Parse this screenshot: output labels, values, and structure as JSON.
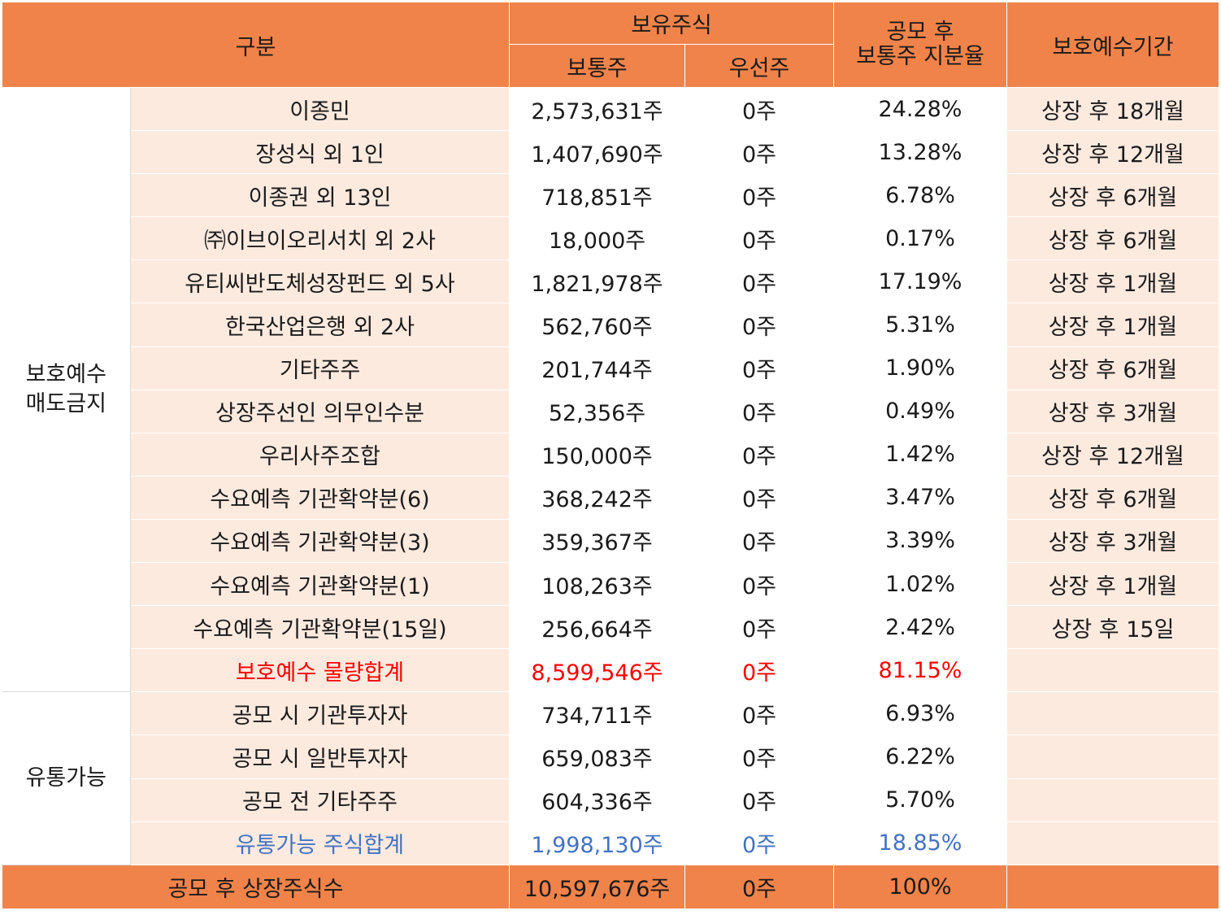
{
  "header": {
    "category": "구분",
    "holdings": "보유주식",
    "common": "보통주",
    "preferred": "우선주",
    "ratio": "공모 후\n보통주 지분율",
    "lockup_period": "보호예수기간"
  },
  "groups": {
    "locked": "보호예수\n매도금지",
    "tradable": "유통가능"
  },
  "locked_rows": [
    {
      "name": "이종민",
      "common": "2,573,631주",
      "preferred": "0주",
      "ratio": "24.28%",
      "period": "상장 후 18개월"
    },
    {
      "name": "장성식 외 1인",
      "common": "1,407,690주",
      "preferred": "0주",
      "ratio": "13.28%",
      "period": "상장 후 12개월"
    },
    {
      "name": "이종권 외 13인",
      "common": "718,851주",
      "preferred": "0주",
      "ratio": "6.78%",
      "period": "상장 후 6개월"
    },
    {
      "name": "㈜이브이오리서치 외 2사",
      "common": "18,000주",
      "preferred": "0주",
      "ratio": "0.17%",
      "period": "상장 후 6개월"
    },
    {
      "name": "유티씨반도체성장펀드 외 5사",
      "common": "1,821,978주",
      "preferred": "0주",
      "ratio": "17.19%",
      "period": "상장 후 1개월"
    },
    {
      "name": "한국산업은행 외 2사",
      "common": "562,760주",
      "preferred": "0주",
      "ratio": "5.31%",
      "period": "상장 후 1개월"
    },
    {
      "name": "기타주주",
      "common": "201,744주",
      "preferred": "0주",
      "ratio": "1.90%",
      "period": "상장 후 6개월"
    },
    {
      "name": "상장주선인 의무인수분",
      "common": "52,356주",
      "preferred": "0주",
      "ratio": "0.49%",
      "period": "상장 후 3개월"
    },
    {
      "name": "우리사주조합",
      "common": "150,000주",
      "preferred": "0주",
      "ratio": "1.42%",
      "period": "상장 후 12개월"
    },
    {
      "name": "수요예측 기관확약분(6)",
      "common": "368,242주",
      "preferred": "0주",
      "ratio": "3.47%",
      "period": "상장 후 6개월"
    },
    {
      "name": "수요예측 기관확약분(3)",
      "common": "359,367주",
      "preferred": "0주",
      "ratio": "3.39%",
      "period": "상장 후 3개월"
    },
    {
      "name": "수요예측 기관확약분(1)",
      "common": "108,263주",
      "preferred": "0주",
      "ratio": "1.02%",
      "period": "상장 후 1개월"
    },
    {
      "name": "수요예측 기관확약분(15일)",
      "common": "256,664주",
      "preferred": "0주",
      "ratio": "2.42%",
      "period": "상장 후 15일"
    }
  ],
  "locked_sum": {
    "name": "보호예수 물량합계",
    "common": "8,599,546주",
    "preferred": "0주",
    "ratio": "81.15%"
  },
  "tradable_rows": [
    {
      "name": "공모 시 기관투자자",
      "common": "734,711주",
      "preferred": "0주",
      "ratio": "6.93%"
    },
    {
      "name": "공모 시 일반투자자",
      "common": "659,083주",
      "preferred": "0주",
      "ratio": "6.22%"
    },
    {
      "name": "공모 전 기타주주",
      "common": "604,336주",
      "preferred": "0주",
      "ratio": "5.70%"
    }
  ],
  "tradable_sum": {
    "name": "유통가능 주식합계",
    "common": "1,998,130주",
    "preferred": "0주",
    "ratio": "18.85%"
  },
  "total": {
    "name": "공모 후 상장주식수",
    "common": "10,597,676주",
    "preferred": "0주",
    "ratio": "100%"
  },
  "colors": {
    "header_bg": "#F0834A",
    "row_bg": "#FDEADF",
    "sum_red": "#ff0000",
    "sum_blue": "#4472C4"
  }
}
